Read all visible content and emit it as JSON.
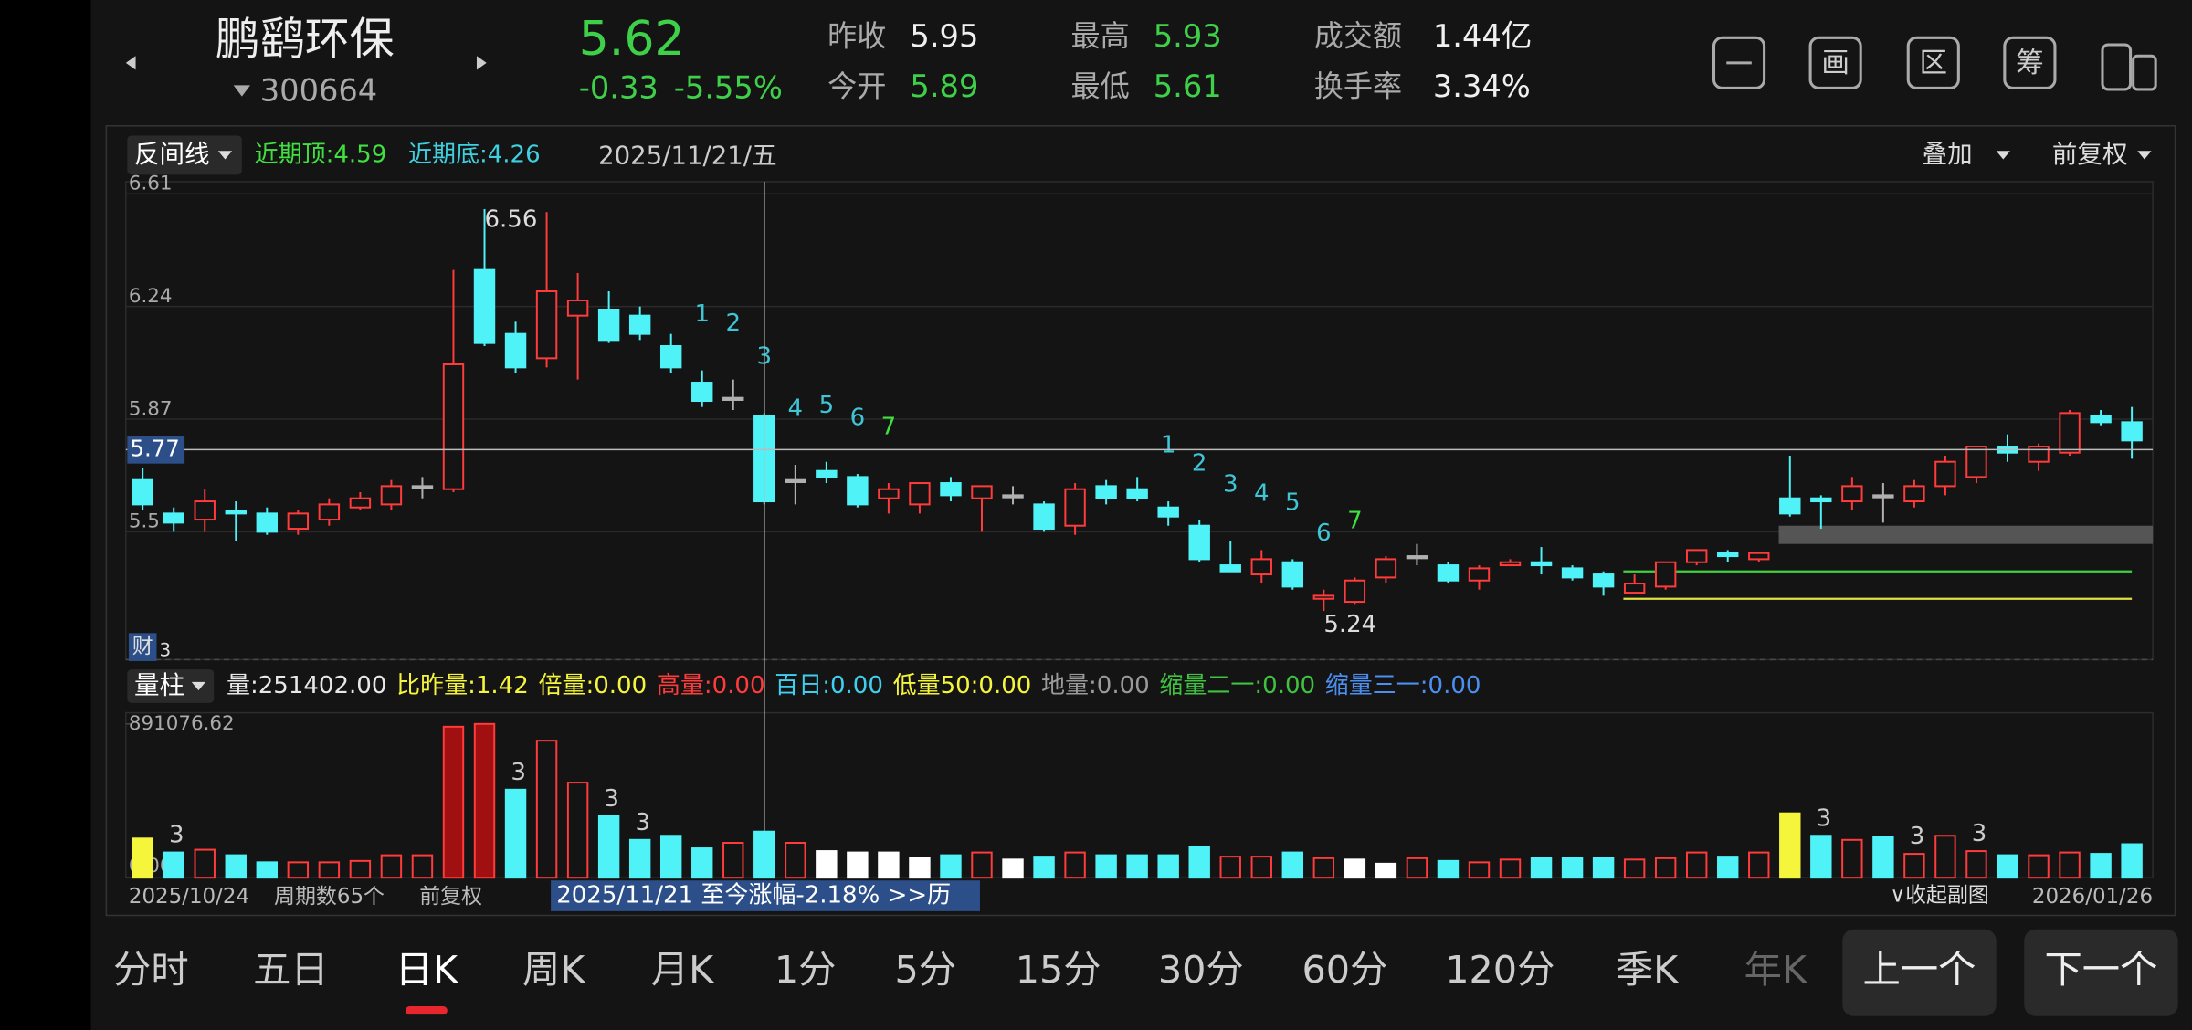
{
  "header": {
    "name": "鹏鹞环保",
    "code": "300664",
    "price": "5.62",
    "change": "-0.33",
    "change_pct": "-5.55%",
    "stats": [
      {
        "label": "昨收",
        "value": "5.95",
        "color": "#f0f0f0"
      },
      {
        "label": "今开",
        "value": "5.89",
        "color": "#3fd04a"
      },
      {
        "label": "最高",
        "value": "5.93",
        "color": "#3fd04a"
      },
      {
        "label": "最低",
        "value": "5.61",
        "color": "#3fd04a"
      },
      {
        "label": "成交额",
        "value": "1.44亿",
        "color": "#f0f0f0"
      },
      {
        "label": "换手率",
        "value": "3.34%",
        "color": "#f0f0f0"
      }
    ],
    "buttons": [
      "画",
      "区",
      "筹"
    ]
  },
  "toolbar": {
    "indicator": "反间线",
    "recent_top": "近期顶:4.59",
    "recent_bottom": "近期底:4.26",
    "date": "2025/11/21/五",
    "overlay": "叠加",
    "adjust": "前复权"
  },
  "chart_data": [
    {
      "type": "candlestick",
      "categories": [
        "2025/10/24",
        null,
        null,
        null,
        null,
        null,
        null,
        null,
        null,
        null,
        null,
        null,
        null,
        null,
        null,
        null,
        null,
        null,
        null,
        null,
        null,
        null,
        null,
        null,
        null,
        null,
        null,
        null,
        null,
        null,
        null,
        null,
        null,
        null,
        null,
        null,
        null,
        null,
        null,
        null,
        null,
        null,
        null,
        null,
        null,
        null,
        null,
        null,
        null,
        null,
        null,
        null,
        null,
        null,
        null,
        null,
        null,
        null,
        null,
        null,
        null,
        null,
        null,
        null,
        "2026/01/26"
      ],
      "open": [
        5.67,
        5.56,
        5.54,
        5.57,
        5.56,
        5.51,
        5.54,
        5.58,
        5.59,
        5.65,
        5.64,
        6.36,
        6.15,
        6.07,
        6.21,
        6.23,
        6.21,
        6.11,
        5.99,
        5.94,
        5.88,
        5.67,
        5.7,
        5.68,
        5.61,
        5.59,
        5.66,
        5.61,
        5.62,
        5.59,
        5.52,
        5.65,
        5.64,
        5.58,
        5.52,
        5.39,
        5.36,
        5.4,
        5.28,
        5.27,
        5.35,
        5.42,
        5.39,
        5.34,
        5.39,
        5.4,
        5.38,
        5.36,
        5.3,
        5.32,
        5.4,
        5.43,
        5.41,
        5.61,
        5.61,
        5.6,
        5.62,
        5.6,
        5.65,
        5.68,
        5.78,
        5.73,
        5.76,
        5.88,
        5.86
      ],
      "high": [
        5.71,
        5.58,
        5.64,
        5.6,
        5.58,
        5.57,
        5.61,
        5.63,
        5.67,
        5.68,
        6.36,
        6.56,
        6.19,
        6.55,
        6.35,
        6.29,
        6.24,
        6.15,
        6.03,
        6.0,
        5.89,
        5.72,
        5.73,
        5.69,
        5.66,
        5.66,
        5.68,
        5.65,
        5.65,
        5.6,
        5.66,
        5.67,
        5.68,
        5.6,
        5.54,
        5.47,
        5.44,
        5.41,
        5.31,
        5.35,
        5.42,
        5.46,
        5.4,
        5.39,
        5.41,
        5.45,
        5.39,
        5.37,
        5.36,
        5.4,
        5.44,
        5.44,
        5.43,
        5.75,
        5.62,
        5.68,
        5.66,
        5.67,
        5.75,
        5.78,
        5.82,
        5.79,
        5.9,
        5.9,
        5.91
      ],
      "low": [
        5.57,
        5.5,
        5.5,
        5.47,
        5.49,
        5.49,
        5.52,
        5.57,
        5.57,
        5.61,
        5.63,
        6.11,
        6.02,
        6.04,
        6.0,
        6.12,
        6.13,
        6.02,
        5.91,
        5.9,
        5.59,
        5.59,
        5.66,
        5.58,
        5.56,
        5.56,
        5.6,
        5.5,
        5.59,
        5.5,
        5.49,
        5.59,
        5.6,
        5.52,
        5.4,
        5.37,
        5.33,
        5.31,
        5.24,
        5.26,
        5.33,
        5.39,
        5.33,
        5.31,
        5.39,
        5.36,
        5.34,
        5.29,
        5.3,
        5.31,
        5.39,
        5.4,
        5.4,
        5.55,
        5.51,
        5.57,
        5.53,
        5.58,
        5.62,
        5.66,
        5.73,
        5.7,
        5.75,
        5.85,
        5.74
      ],
      "close": [
        5.59,
        5.53,
        5.6,
        5.56,
        5.5,
        5.56,
        5.59,
        5.61,
        5.65,
        5.65,
        6.05,
        6.12,
        6.04,
        6.29,
        6.26,
        6.13,
        6.15,
        6.04,
        5.93,
        5.94,
        5.6,
        5.67,
        5.68,
        5.59,
        5.64,
        5.66,
        5.62,
        5.65,
        5.62,
        5.51,
        5.64,
        5.61,
        5.61,
        5.55,
        5.41,
        5.37,
        5.41,
        5.32,
        5.29,
        5.34,
        5.41,
        5.42,
        5.34,
        5.38,
        5.4,
        5.39,
        5.35,
        5.32,
        5.33,
        5.4,
        5.44,
        5.42,
        5.43,
        5.56,
        5.6,
        5.65,
        5.62,
        5.65,
        5.73,
        5.78,
        5.76,
        5.78,
        5.89,
        5.86,
        5.8
      ],
      "sequence_labels": [
        null,
        null,
        null,
        null,
        null,
        null,
        null,
        null,
        null,
        null,
        null,
        null,
        null,
        null,
        null,
        null,
        null,
        null,
        "1",
        "2",
        "3",
        "4",
        "5",
        "6",
        "7",
        null,
        null,
        null,
        null,
        null,
        null,
        null,
        null,
        "1",
        "2",
        "3",
        "4",
        "5",
        "6",
        "7",
        null,
        null,
        null,
        null,
        null,
        null,
        null,
        null,
        null,
        null,
        null,
        null,
        null,
        null,
        null,
        null,
        null,
        null,
        null,
        null,
        null,
        null,
        null,
        null,
        null
      ],
      "sequence_color": "#3fc6d6",
      "sequence_final_color": "#3fe03f",
      "up_color": "#ff3b3b",
      "down_color": "#4ef2f7",
      "flat_color": "#b0b0b0",
      "ylim": [
        5.08,
        6.65
      ],
      "yticks": [
        6.61,
        6.24,
        5.87,
        5.5
      ],
      "crosshair_price": 5.77,
      "levels": [
        {
          "from": 53,
          "low": 5.46,
          "high": 5.52,
          "color": "#555555"
        },
        {
          "from": 48,
          "value": 5.37,
          "color": "#3fd13f"
        },
        {
          "from": 48,
          "value": 5.28,
          "color": "#e0e040"
        }
      ],
      "finance_marker": {
        "icon": "财",
        "count": "3"
      }
    },
    {
      "type": "bar",
      "values": [
        227000,
        146000,
        162000,
        130000,
        89000,
        89000,
        89000,
        97000,
        130000,
        130000,
        875000,
        891076.62,
        510000,
        794000,
        551000,
        356000,
        219000,
        243000,
        170000,
        202000,
        267000,
        202000,
        154000,
        146000,
        146000,
        113000,
        130000,
        146000,
        105000,
        122000,
        146000,
        130000,
        130000,
        130000,
        178000,
        122000,
        122000,
        146000,
        113000,
        105000,
        81000,
        113000,
        97000,
        89000,
        105000,
        113000,
        113000,
        113000,
        105000,
        113000,
        146000,
        122000,
        146000,
        373000,
        243000,
        219000,
        235000,
        138000,
        243000,
        154000,
        130000,
        130000,
        146000,
        138000,
        194000
      ],
      "colors": [
        "#f5f53c",
        "#4ef2f7",
        "#ff3b3b",
        "#4ef2f7",
        "#4ef2f7",
        "#ff3b3b",
        "#ff3b3b",
        "#ff3b3b",
        "#ff3b3b",
        "#ff3b3b",
        "#a01010",
        "#a01010",
        "#4ef2f7",
        "#ff3b3b",
        "#ff3b3b",
        "#4ef2f7",
        "#4ef2f7",
        "#4ef2f7",
        "#4ef2f7",
        "#ff3b3b",
        "#4ef2f7",
        "#ff3b3b",
        "#ffffff",
        "#ffffff",
        "#ffffff",
        "#ffffff",
        "#4ef2f7",
        "#ff3b3b",
        "#ffffff",
        "#4ef2f7",
        "#ff3b3b",
        "#4ef2f7",
        "#4ef2f7",
        "#4ef2f7",
        "#4ef2f7",
        "#ff3b3b",
        "#ff3b3b",
        "#4ef2f7",
        "#ff3b3b",
        "#ffffff",
        "#ffffff",
        "#ff3b3b",
        "#4ef2f7",
        "#ff3b3b",
        "#ff3b3b",
        "#4ef2f7",
        "#4ef2f7",
        "#4ef2f7",
        "#ff3b3b",
        "#ff3b3b",
        "#ff3b3b",
        "#4ef2f7",
        "#ff3b3b",
        "#f5f53c",
        "#4ef2f7",
        "#ff3b3b",
        "#4ef2f7",
        "#ff3b3b",
        "#ff3b3b",
        "#ff3b3b",
        "#4ef2f7",
        "#ff3b3b",
        "#ff3b3b",
        "#4ef2f7",
        "#4ef2f7"
      ],
      "bar_labels": [
        null,
        "3",
        null,
        null,
        null,
        null,
        null,
        null,
        null,
        null,
        null,
        null,
        "3",
        null,
        null,
        "3",
        "3",
        null,
        null,
        null,
        null,
        null,
        null,
        null,
        null,
        null,
        null,
        null,
        null,
        null,
        null,
        null,
        null,
        null,
        null,
        null,
        null,
        null,
        null,
        null,
        null,
        null,
        null,
        null,
        null,
        null,
        null,
        null,
        null,
        null,
        null,
        null,
        null,
        null,
        "3",
        null,
        null,
        "3",
        null,
        "3",
        null,
        null,
        null,
        null,
        null
      ],
      "ylim": [
        0,
        891076.62
      ],
      "yticks": [
        {
          "value": 891076.62,
          "label": "891076.62"
        },
        {
          "value": 0,
          "label": "0.00"
        }
      ],
      "selector": "量柱",
      "stats": [
        {
          "text": "量:251402.00",
          "color": "#e8e8e8"
        },
        {
          "text": "比昨量:1.42",
          "color": "#f5f53c"
        },
        {
          "text": "倍量:0.00",
          "color": "#f5f53c"
        },
        {
          "text": "高量:0.00",
          "color": "#ff3b3b"
        },
        {
          "text": "百日:0.00",
          "color": "#3fd0f0"
        },
        {
          "text": "低量50:0.00",
          "color": "#f5f53c"
        },
        {
          "text": "地量:0.00",
          "color": "#9a9a9a"
        },
        {
          "text": "缩量二一:0.00",
          "color": "#3fc23f"
        },
        {
          "text": "缩量三一:0.00",
          "color": "#4b8ff0"
        }
      ]
    }
  ],
  "footer": {
    "period_count": "周期数65个",
    "adjust": "前复权",
    "range_text": "2025/11/21 至今涨幅-2.18%  >>历",
    "collapse": "∨收起副图"
  },
  "tabs": [
    "分时",
    "五日",
    "日K",
    "周K",
    "月K",
    "1分",
    "5分",
    "15分",
    "30分",
    "60分",
    "120分",
    "季K",
    "年K"
  ],
  "active_tab": 2,
  "nav": [
    "上一个",
    "下一个"
  ]
}
